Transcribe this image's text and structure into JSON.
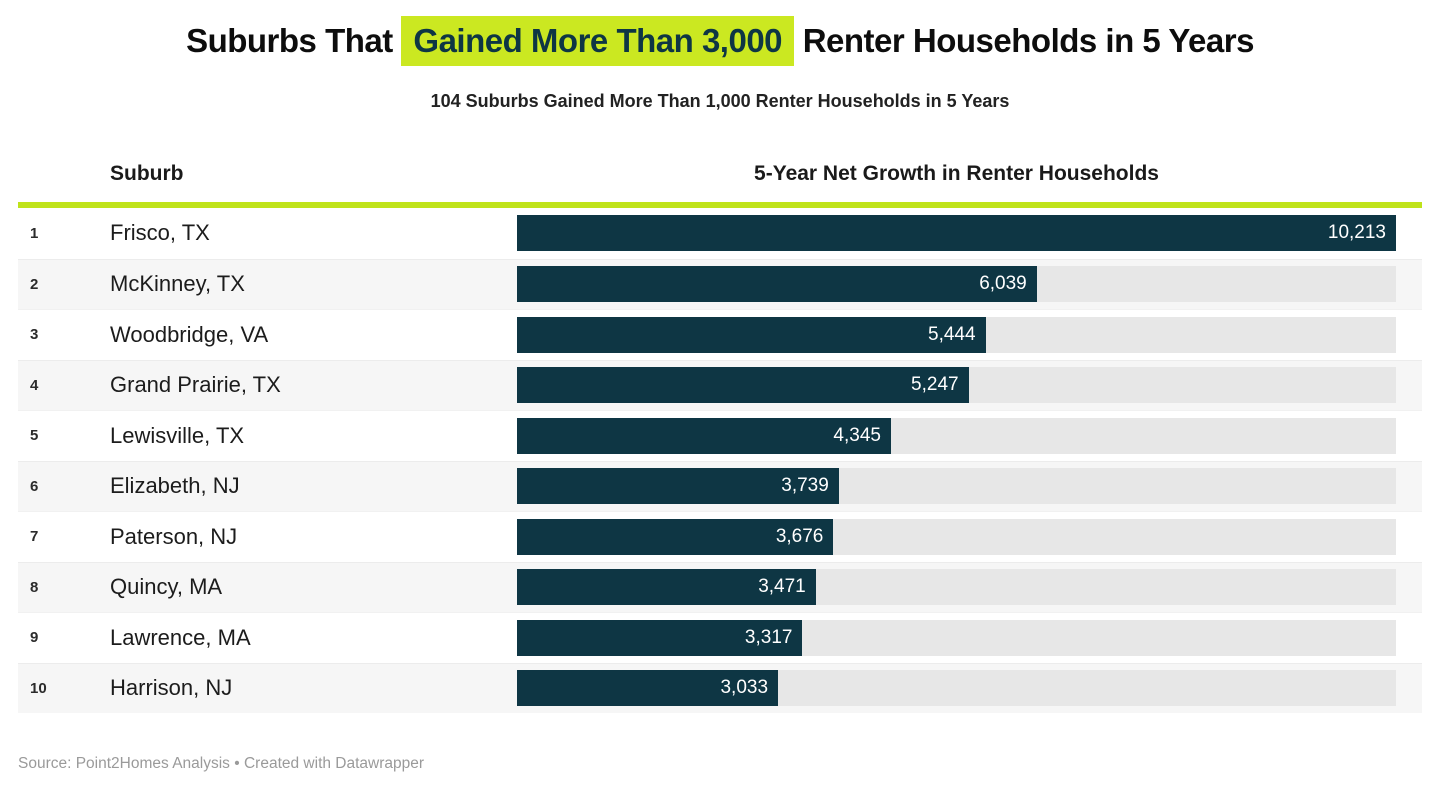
{
  "title": {
    "pre": "Suburbs That",
    "highlight": "Gained More Than 3,000",
    "post": "Renter Households in 5 Years"
  },
  "subtitle": "104 Suburbs Gained More Than 1,000 Renter Households in 5 Years",
  "table_headers": {
    "suburb": "Suburb",
    "growth": "5-Year Net Growth in Renter Households"
  },
  "colors": {
    "bar_fill": "#0e3644",
    "bar_track": "#e7e7e7",
    "highlight_bg": "#cbe821",
    "highlight_text": "#0e3644",
    "rule_green": "#bfe31a",
    "row_stripe": "#f6f6f6",
    "footer_text": "#9a9a9a"
  },
  "chart_data": {
    "type": "bar",
    "orientation": "horizontal",
    "title": "Suburbs That Gained More Than 3,000 Renter Households in 5 Years",
    "subtitle": "104 Suburbs Gained More Than 1,000 Renter Households in 5 Years",
    "xlabel": "5-Year Net Growth in Renter Households",
    "ylabel": "Suburb",
    "xlim": [
      0,
      10213
    ],
    "grid": false,
    "legend": false,
    "categories": [
      "Frisco, TX",
      "McKinney, TX",
      "Woodbridge, VA",
      "Grand Prairie, TX",
      "Lewisville, TX",
      "Elizabeth, NJ",
      "Paterson, NJ",
      "Quincy, MA",
      "Lawrence, MA",
      "Harrison, NJ"
    ],
    "values": [
      10213,
      6039,
      5444,
      5247,
      4345,
      3739,
      3676,
      3471,
      3317,
      3033
    ],
    "value_labels": [
      "10,213",
      "6,039",
      "5,444",
      "5,247",
      "4,345",
      "3,739",
      "3,676",
      "3,471",
      "3,317",
      "3,033"
    ]
  },
  "rows": [
    {
      "rank": "1",
      "suburb": "Frisco, TX",
      "value_label": "10,213"
    },
    {
      "rank": "2",
      "suburb": "McKinney, TX",
      "value_label": "6,039"
    },
    {
      "rank": "3",
      "suburb": "Woodbridge, VA",
      "value_label": "5,444"
    },
    {
      "rank": "4",
      "suburb": "Grand Prairie, TX",
      "value_label": "5,247"
    },
    {
      "rank": "5",
      "suburb": "Lewisville, TX",
      "value_label": "4,345"
    },
    {
      "rank": "6",
      "suburb": "Elizabeth, NJ",
      "value_label": "3,739"
    },
    {
      "rank": "7",
      "suburb": "Paterson, NJ",
      "value_label": "3,676"
    },
    {
      "rank": "8",
      "suburb": "Quincy, MA",
      "value_label": "3,471"
    },
    {
      "rank": "9",
      "suburb": "Lawrence, MA",
      "value_label": "3,317"
    },
    {
      "rank": "10",
      "suburb": "Harrison, NJ",
      "value_label": "3,033"
    }
  ],
  "footer": "Source: Point2Homes Analysis • Created with Datawrapper"
}
